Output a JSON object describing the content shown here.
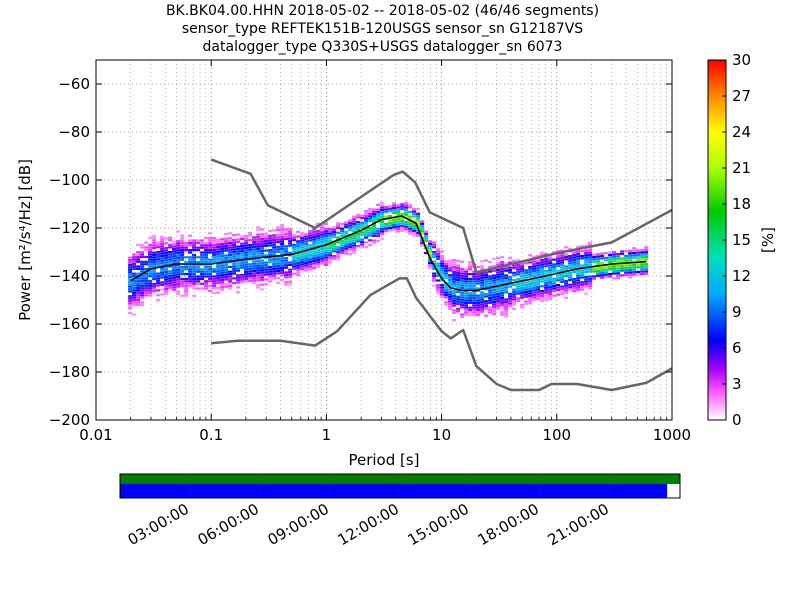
{
  "title_lines": [
    "BK.BK04.00.HHN   2018-05-02 -- 2018-05-02  (46/46 segments)",
    "sensor_type REFTEK151B-120USGS sensor_sn G12187VS",
    "datalogger_type Q330S+USGS datalogger_sn 6073"
  ],
  "chart_data": {
    "type": "heatmap",
    "xlabel": "Period [s]",
    "ylabel": "Power [m²/s⁴/Hz] [dB]",
    "xscale": "log",
    "xlim": [
      0.01,
      1000
    ],
    "ylim": [
      -200,
      -50
    ],
    "x_ticks": [
      0.01,
      0.1,
      1,
      10,
      100,
      1000
    ],
    "x_tick_labels": [
      "0.01",
      "0.1",
      "1",
      "10",
      "100",
      "1000"
    ],
    "y_ticks": [
      -200,
      -180,
      -160,
      -140,
      -120,
      -100,
      -80,
      -60
    ],
    "y_tick_labels": [
      "−200",
      "−180",
      "−160",
      "−140",
      "−120",
      "−100",
      "−80",
      "−60"
    ],
    "grid": "dotted",
    "colorbar": {
      "label": "[%]",
      "range": [
        0,
        30
      ],
      "ticks": [
        0,
        3,
        6,
        9,
        12,
        15,
        18,
        21,
        24,
        27,
        30
      ]
    },
    "series": [
      {
        "style": "gray-line",
        "x": [
          0.1,
          0.22,
          0.31,
          0.8,
          3.8,
          4.6,
          5.9,
          7.9,
          15.4,
          20,
          100,
          300,
          1000
        ],
        "y": [
          -91.5,
          -97.4,
          -110.5,
          -120,
          -98,
          -96.5,
          -101,
          -113.5,
          -120,
          -138.5,
          -130.5,
          -126,
          -112.5
        ]
      },
      {
        "style": "gray-line",
        "x": [
          0.1,
          0.17,
          0.4,
          0.8,
          1.24,
          2.4,
          4.3,
          5.0,
          6.0,
          10,
          12,
          15.4,
          20,
          30,
          40,
          70,
          90,
          150,
          300,
          600,
          1000
        ],
        "y": [
          -168,
          -167,
          -167,
          -169,
          -163,
          -148,
          -141,
          -141,
          -149,
          -163,
          -166,
          -162.5,
          -177.5,
          -185,
          -187.5,
          -187.5,
          -185,
          -185,
          -187.5,
          -184.5,
          -178.5
        ]
      },
      {
        "style": "black-line",
        "x": [
          0.02,
          0.03,
          0.05,
          0.1,
          0.2,
          0.5,
          1,
          2,
          3,
          4.5,
          6,
          8,
          10,
          12,
          15,
          20,
          40,
          80,
          150,
          300,
          600
        ],
        "y": [
          -142,
          -137,
          -135,
          -135,
          -133,
          -131,
          -127,
          -121,
          -116.5,
          -115,
          -118,
          -133,
          -141,
          -145,
          -146,
          -146,
          -143,
          -140,
          -137,
          -135,
          -134
        ]
      }
    ]
  },
  "timeline": {
    "labels": [
      "03:00:00",
      "06:00:00",
      "09:00:00",
      "12:00:00",
      "15:00:00",
      "18:00:00",
      "21:00:00"
    ],
    "data_coverage": 0.977
  },
  "colors": {
    "gray_line": "#666666",
    "median_line": "#000000",
    "coverage_green": "#007f00",
    "coverage_blue": "#0000ff"
  }
}
